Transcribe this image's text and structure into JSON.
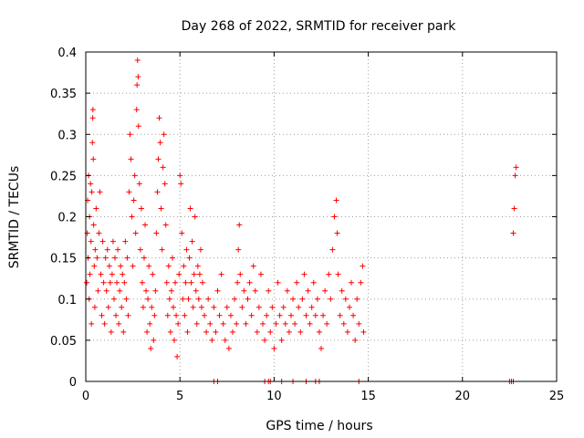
{
  "chart_data": {
    "type": "scatter",
    "title": "Day 268 of 2022, SRMTID for receiver park",
    "xlabel": "GPS time / hours",
    "ylabel": "SRMTID / TECUs",
    "xlim": [
      0,
      25
    ],
    "ylim": [
      0,
      0.4
    ],
    "xticks": [
      0,
      5,
      10,
      15,
      20,
      25
    ],
    "xtick_labels": [
      "0",
      "5",
      "10",
      "15",
      "20",
      "25"
    ],
    "yticks": [
      0,
      0.05,
      0.1,
      0.15,
      0.2,
      0.25,
      0.3,
      0.35,
      0.4
    ],
    "ytick_labels": [
      "0",
      "0.05",
      "0.1",
      "0.15",
      "0.2",
      "0.25",
      "0.3",
      "0.35",
      "0.4"
    ],
    "grid": true,
    "marker": "+",
    "color": "#ff0000",
    "series": [
      {
        "name": "SRMTID",
        "points": [
          [
            0.05,
            0.12
          ],
          [
            0.08,
            0.18
          ],
          [
            0.1,
            0.22
          ],
          [
            0.12,
            0.15
          ],
          [
            0.15,
            0.25
          ],
          [
            0.18,
            0.1
          ],
          [
            0.2,
            0.2
          ],
          [
            0.22,
            0.13
          ],
          [
            0.25,
            0.24
          ],
          [
            0.28,
            0.17
          ],
          [
            0.3,
            0.07
          ],
          [
            0.32,
            0.23
          ],
          [
            0.35,
            0.29
          ],
          [
            0.37,
            0.32
          ],
          [
            0.38,
            0.33
          ],
          [
            0.4,
            0.27
          ],
          [
            0.42,
            0.19
          ],
          [
            0.45,
            0.14
          ],
          [
            0.48,
            0.09
          ],
          [
            0.5,
            0.16
          ],
          [
            0.55,
            0.21
          ],
          [
            0.6,
            0.15
          ],
          [
            0.65,
            0.11
          ],
          [
            0.7,
            0.18
          ],
          [
            0.75,
            0.23
          ],
          [
            0.8,
            0.13
          ],
          [
            0.85,
            0.08
          ],
          [
            0.9,
            0.17
          ],
          [
            0.95,
            0.12
          ],
          [
            1.0,
            0.07
          ],
          [
            1.05,
            0.15
          ],
          [
            1.1,
            0.11
          ],
          [
            1.15,
            0.16
          ],
          [
            1.2,
            0.09
          ],
          [
            1.25,
            0.14
          ],
          [
            1.3,
            0.12
          ],
          [
            1.35,
            0.06
          ],
          [
            1.4,
            0.13
          ],
          [
            1.45,
            0.17
          ],
          [
            1.5,
            0.1
          ],
          [
            1.55,
            0.15
          ],
          [
            1.6,
            0.08
          ],
          [
            1.65,
            0.12
          ],
          [
            1.7,
            0.16
          ],
          [
            1.75,
            0.07
          ],
          [
            1.8,
            0.11
          ],
          [
            1.85,
            0.14
          ],
          [
            1.9,
            0.09
          ],
          [
            1.95,
            0.13
          ],
          [
            2.0,
            0.06
          ],
          [
            2.05,
            0.12
          ],
          [
            2.1,
            0.17
          ],
          [
            2.15,
            0.1
          ],
          [
            2.2,
            0.15
          ],
          [
            2.25,
            0.08
          ],
          [
            2.3,
            0.23
          ],
          [
            2.35,
            0.3
          ],
          [
            2.4,
            0.27
          ],
          [
            2.45,
            0.2
          ],
          [
            2.5,
            0.14
          ],
          [
            2.55,
            0.22
          ],
          [
            2.6,
            0.25
          ],
          [
            2.65,
            0.18
          ],
          [
            2.7,
            0.33
          ],
          [
            2.72,
            0.36
          ],
          [
            2.75,
            0.39
          ],
          [
            2.78,
            0.37
          ],
          [
            2.8,
            0.31
          ],
          [
            2.85,
            0.24
          ],
          [
            2.9,
            0.16
          ],
          [
            2.95,
            0.21
          ],
          [
            3.0,
            0.12
          ],
          [
            3.05,
            0.09
          ],
          [
            3.1,
            0.15
          ],
          [
            3.15,
            0.19
          ],
          [
            3.2,
            0.11
          ],
          [
            3.25,
            0.06
          ],
          [
            3.3,
            0.1
          ],
          [
            3.35,
            0.14
          ],
          [
            3.4,
            0.07
          ],
          [
            3.45,
            0.04
          ],
          [
            3.5,
            0.09
          ],
          [
            3.55,
            0.13
          ],
          [
            3.6,
            0.05
          ],
          [
            3.65,
            0.08
          ],
          [
            3.7,
            0.11
          ],
          [
            3.75,
            0.18
          ],
          [
            3.8,
            0.23
          ],
          [
            3.85,
            0.27
          ],
          [
            3.9,
            0.32
          ],
          [
            3.95,
            0.29
          ],
          [
            4.0,
            0.21
          ],
          [
            4.05,
            0.16
          ],
          [
            4.1,
            0.26
          ],
          [
            4.15,
            0.3
          ],
          [
            4.2,
            0.24
          ],
          [
            4.25,
            0.19
          ],
          [
            4.3,
            0.12
          ],
          [
            4.35,
            0.08
          ],
          [
            4.4,
            0.14
          ],
          [
            4.45,
            0.1
          ],
          [
            4.5,
            0.06
          ],
          [
            4.55,
            0.11
          ],
          [
            4.6,
            0.15
          ],
          [
            4.65,
            0.09
          ],
          [
            4.7,
            0.05
          ],
          [
            4.75,
            0.12
          ],
          [
            4.8,
            0.08
          ],
          [
            4.85,
            0.03
          ],
          [
            4.9,
            0.07
          ],
          [
            4.95,
            0.13
          ],
          [
            5.0,
            0.25
          ],
          [
            5.05,
            0.24
          ],
          [
            5.1,
            0.18
          ],
          [
            5.15,
            0.1
          ],
          [
            5.2,
            0.14
          ],
          [
            5.25,
            0.08
          ],
          [
            5.3,
            0.12
          ],
          [
            5.35,
            0.16
          ],
          [
            5.4,
            0.06
          ],
          [
            5.45,
            0.1
          ],
          [
            5.5,
            0.15
          ],
          [
            5.55,
            0.21
          ],
          [
            5.6,
            0.12
          ],
          [
            5.65,
            0.17
          ],
          [
            5.7,
            0.09
          ],
          [
            5.75,
            0.13
          ],
          [
            5.8,
            0.2
          ],
          [
            5.85,
            0.11
          ],
          [
            5.9,
            0.07
          ],
          [
            5.95,
            0.14
          ],
          [
            6.0,
            0.1
          ],
          [
            6.05,
            0.13
          ],
          [
            6.1,
            0.16
          ],
          [
            6.15,
            0.09
          ],
          [
            6.2,
            0.12
          ],
          [
            6.3,
            0.08
          ],
          [
            6.4,
            0.06
          ],
          [
            6.5,
            0.1
          ],
          [
            6.6,
            0.07
          ],
          [
            6.7,
            0.05
          ],
          [
            6.8,
            0.09
          ],
          [
            6.9,
            0.06
          ],
          [
            7.0,
            0.11
          ],
          [
            7.1,
            0.08
          ],
          [
            7.2,
            0.13
          ],
          [
            7.3,
            0.07
          ],
          [
            7.4,
            0.05
          ],
          [
            7.5,
            0.09
          ],
          [
            7.6,
            0.04
          ],
          [
            7.7,
            0.08
          ],
          [
            7.8,
            0.06
          ],
          [
            7.9,
            0.1
          ],
          [
            8.0,
            0.07
          ],
          [
            8.05,
            0.12
          ],
          [
            8.1,
            0.16
          ],
          [
            8.15,
            0.19
          ],
          [
            8.2,
            0.13
          ],
          [
            8.3,
            0.09
          ],
          [
            8.4,
            0.11
          ],
          [
            8.5,
            0.07
          ],
          [
            8.6,
            0.1
          ],
          [
            8.7,
            0.12
          ],
          [
            8.8,
            0.08
          ],
          [
            8.9,
            0.14
          ],
          [
            9.0,
            0.11
          ],
          [
            9.1,
            0.06
          ],
          [
            9.2,
            0.09
          ],
          [
            9.3,
            0.13
          ],
          [
            9.4,
            0.07
          ],
          [
            9.5,
            0.05
          ],
          [
            9.6,
            0.08
          ],
          [
            9.7,
            0.11
          ],
          [
            9.8,
            0.06
          ],
          [
            9.9,
            0.09
          ],
          [
            10.0,
            0.04
          ],
          [
            10.1,
            0.07
          ],
          [
            10.2,
            0.12
          ],
          [
            10.3,
            0.08
          ],
          [
            10.4,
            0.05
          ],
          [
            10.5,
            0.09
          ],
          [
            10.6,
            0.07
          ],
          [
            10.7,
            0.11
          ],
          [
            10.8,
            0.06
          ],
          [
            10.9,
            0.08
          ],
          [
            11.0,
            0.1
          ],
          [
            11.1,
            0.07
          ],
          [
            11.2,
            0.12
          ],
          [
            11.3,
            0.09
          ],
          [
            11.4,
            0.06
          ],
          [
            11.5,
            0.1
          ],
          [
            11.6,
            0.13
          ],
          [
            11.7,
            0.08
          ],
          [
            11.8,
            0.11
          ],
          [
            11.9,
            0.07
          ],
          [
            12.0,
            0.09
          ],
          [
            12.1,
            0.12
          ],
          [
            12.2,
            0.08
          ],
          [
            12.3,
            0.1
          ],
          [
            12.4,
            0.06
          ],
          [
            12.5,
            0.04
          ],
          [
            12.6,
            0.08
          ],
          [
            12.7,
            0.11
          ],
          [
            12.8,
            0.07
          ],
          [
            12.9,
            0.13
          ],
          [
            13.0,
            0.1
          ],
          [
            13.1,
            0.16
          ],
          [
            13.2,
            0.2
          ],
          [
            13.3,
            0.22
          ],
          [
            13.35,
            0.18
          ],
          [
            13.4,
            0.13
          ],
          [
            13.5,
            0.08
          ],
          [
            13.6,
            0.11
          ],
          [
            13.7,
            0.07
          ],
          [
            13.8,
            0.1
          ],
          [
            13.9,
            0.06
          ],
          [
            14.0,
            0.09
          ],
          [
            14.1,
            0.12
          ],
          [
            14.2,
            0.08
          ],
          [
            14.3,
            0.05
          ],
          [
            14.4,
            0.1
          ],
          [
            14.5,
            0.07
          ],
          [
            14.6,
            0.12
          ],
          [
            14.7,
            0.14
          ],
          [
            14.75,
            0.06
          ],
          [
            22.7,
            0.18
          ],
          [
            22.75,
            0.21
          ],
          [
            22.8,
            0.25
          ],
          [
            22.85,
            0.26
          ],
          [
            6.8,
            0
          ],
          [
            7.0,
            0
          ],
          [
            9.5,
            0
          ],
          [
            9.7,
            0
          ],
          [
            9.8,
            0
          ],
          [
            10.4,
            0
          ],
          [
            11.0,
            0
          ],
          [
            11.7,
            0
          ],
          [
            12.2,
            0
          ],
          [
            12.4,
            0
          ],
          [
            14.5,
            0
          ],
          [
            22.5,
            0
          ],
          [
            22.6,
            0
          ],
          [
            22.7,
            0
          ]
        ]
      }
    ]
  }
}
